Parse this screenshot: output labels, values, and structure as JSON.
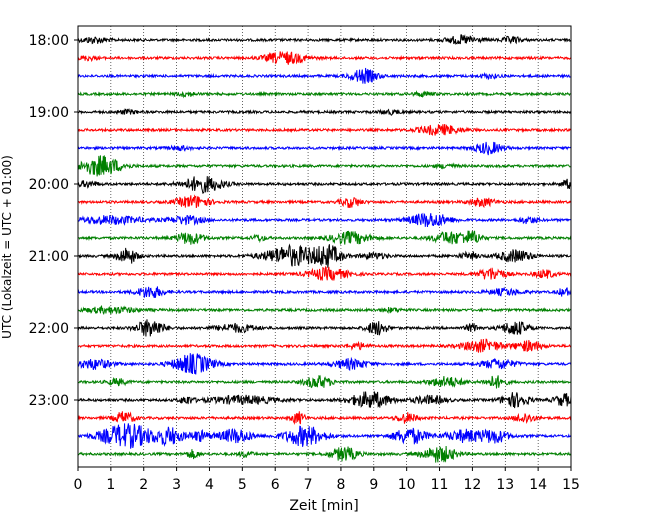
{
  "chart_data": {
    "type": "line",
    "title": "",
    "xlabel": "Zeit  [min]",
    "ylabel": "UTC (Lokalzeit = UTC + 01:00)",
    "xlim": [
      0,
      15
    ],
    "x_ticks": [
      0,
      1,
      2,
      3,
      4,
      5,
      6,
      7,
      8,
      9,
      10,
      11,
      12,
      13,
      14,
      15
    ],
    "x_tick_labels": [
      "0",
      "1",
      "2",
      "3",
      "4",
      "5",
      "6",
      "7",
      "8",
      "9",
      "10",
      "11",
      "12",
      "13",
      "14",
      "15"
    ],
    "y_tick_labels": [
      "18:00",
      "19:00",
      "20:00",
      "21:00",
      "22:00",
      "23:00"
    ],
    "grid": "vertical dotted",
    "colors": [
      "#000000",
      "#ff0000",
      "#0000ff",
      "#008000"
    ],
    "trace_interval_min": 15,
    "series": [
      {
        "start": "18:00",
        "color": "#000000",
        "bursts": [
          [
            0.5,
            0.4,
            3
          ],
          [
            11.7,
            0.5,
            4
          ],
          [
            13.2,
            0.3,
            3
          ]
        ]
      },
      {
        "start": "18:15",
        "color": "#ff0000",
        "bursts": [
          [
            6.3,
            0.6,
            6
          ],
          [
            0.3,
            0.3,
            2
          ]
        ]
      },
      {
        "start": "18:30",
        "color": "#0000ff",
        "bursts": [
          [
            8.7,
            0.4,
            7
          ],
          [
            12.5,
            0.3,
            2
          ]
        ]
      },
      {
        "start": "18:45",
        "color": "#008000",
        "bursts": [
          [
            3.3,
            0.3,
            2
          ],
          [
            10.5,
            0.3,
            2
          ]
        ]
      },
      {
        "start": "19:00",
        "color": "#000000",
        "bursts": [
          [
            1.5,
            0.3,
            2
          ],
          [
            9.5,
            0.3,
            2
          ]
        ]
      },
      {
        "start": "19:15",
        "color": "#ff0000",
        "bursts": [
          [
            11,
            0.6,
            5
          ]
        ]
      },
      {
        "start": "19:30",
        "color": "#0000ff",
        "bursts": [
          [
            12.5,
            0.4,
            6
          ],
          [
            3.1,
            0.3,
            2
          ]
        ]
      },
      {
        "start": "19:45",
        "color": "#008000",
        "bursts": [
          [
            0.7,
            0.6,
            10
          ],
          [
            11.2,
            0.3,
            2
          ]
        ]
      },
      {
        "start": "20:00",
        "color": "#000000",
        "bursts": [
          [
            3.8,
            0.6,
            8
          ],
          [
            0.3,
            0.3,
            3
          ],
          [
            14.9,
            0.2,
            4
          ]
        ]
      },
      {
        "start": "20:15",
        "color": "#ff0000",
        "bursts": [
          [
            3.5,
            0.5,
            6
          ],
          [
            8.3,
            0.3,
            5
          ],
          [
            12.3,
            0.4,
            4
          ]
        ]
      },
      {
        "start": "20:30",
        "color": "#0000ff",
        "bursts": [
          [
            1,
            1,
            4
          ],
          [
            3.3,
            0.5,
            4
          ],
          [
            10.7,
            0.6,
            7
          ],
          [
            13.7,
            0.3,
            3
          ]
        ]
      },
      {
        "start": "20:45",
        "color": "#008000",
        "bursts": [
          [
            3.4,
            0.4,
            6
          ],
          [
            8.3,
            0.6,
            6
          ],
          [
            11.3,
            0.5,
            6
          ],
          [
            12,
            0.3,
            6
          ],
          [
            5.5,
            0.2,
            3
          ]
        ]
      },
      {
        "start": "21:00",
        "color": "#000000",
        "bursts": [
          [
            1.5,
            0.3,
            8
          ],
          [
            6.5,
            0.8,
            10
          ],
          [
            7.6,
            0.4,
            10
          ],
          [
            13.3,
            0.5,
            6
          ],
          [
            11.9,
            0.3,
            3
          ],
          [
            9,
            0.4,
            3
          ]
        ]
      },
      {
        "start": "21:15",
        "color": "#ff0000",
        "bursts": [
          [
            7.6,
            0.6,
            6
          ],
          [
            12.6,
            0.4,
            6
          ],
          [
            14.2,
            0.3,
            4
          ]
        ]
      },
      {
        "start": "21:30",
        "color": "#0000ff",
        "bursts": [
          [
            2.2,
            0.4,
            6
          ],
          [
            13,
            0.5,
            3
          ],
          [
            14.8,
            0.2,
            4
          ]
        ]
      },
      {
        "start": "21:45",
        "color": "#008000",
        "bursts": [
          [
            1,
            0.8,
            3
          ],
          [
            9.5,
            0.3,
            2
          ]
        ]
      },
      {
        "start": "22:00",
        "color": "#000000",
        "bursts": [
          [
            2.2,
            0.4,
            9
          ],
          [
            4.8,
            0.6,
            4
          ],
          [
            9.1,
            0.3,
            7
          ],
          [
            13.3,
            0.4,
            7
          ],
          [
            12,
            0.2,
            4
          ]
        ]
      },
      {
        "start": "22:15",
        "color": "#ff0000",
        "bursts": [
          [
            12.3,
            0.6,
            6
          ],
          [
            13.7,
            0.4,
            5
          ],
          [
            8.5,
            0.3,
            3
          ]
        ]
      },
      {
        "start": "22:30",
        "color": "#0000ff",
        "bursts": [
          [
            3.5,
            0.6,
            10
          ],
          [
            0.5,
            0.5,
            5
          ],
          [
            8.3,
            0.5,
            5
          ],
          [
            12.8,
            0.5,
            5
          ]
        ]
      },
      {
        "start": "22:45",
        "color": "#008000",
        "bursts": [
          [
            7.3,
            0.4,
            6
          ],
          [
            11.2,
            0.5,
            5
          ],
          [
            12.7,
            0.3,
            6
          ],
          [
            1.2,
            0.3,
            3
          ]
        ]
      },
      {
        "start": "23:00",
        "color": "#000000",
        "bursts": [
          [
            8.9,
            0.6,
            8
          ],
          [
            13.3,
            0.4,
            7
          ],
          [
            14.8,
            0.3,
            6
          ],
          [
            5,
            1,
            4
          ],
          [
            10.7,
            0.5,
            4
          ],
          [
            3.3,
            0.2,
            4
          ]
        ]
      },
      {
        "start": "23:15",
        "color": "#ff0000",
        "bursts": [
          [
            1.4,
            0.3,
            6
          ],
          [
            6.7,
            0.2,
            6
          ],
          [
            10,
            0.3,
            5
          ],
          [
            13.6,
            0.3,
            5
          ]
        ]
      },
      {
        "start": "23:30",
        "color": "#0000ff",
        "bursts": [
          [
            1.5,
            0.8,
            12
          ],
          [
            2.8,
            0.4,
            8
          ],
          [
            4.8,
            0.5,
            7
          ],
          [
            6.9,
            0.6,
            10
          ],
          [
            10.1,
            0.5,
            8
          ],
          [
            11.8,
            0.6,
            6
          ],
          [
            12.7,
            0.4,
            6
          ],
          [
            3.7,
            0.3,
            5
          ]
        ]
      },
      {
        "start": "23:45",
        "color": "#008000",
        "bursts": [
          [
            8.1,
            0.4,
            7
          ],
          [
            11,
            0.5,
            8
          ],
          [
            3.5,
            0.2,
            4
          ],
          [
            5.1,
            0.2,
            3
          ]
        ]
      }
    ]
  }
}
